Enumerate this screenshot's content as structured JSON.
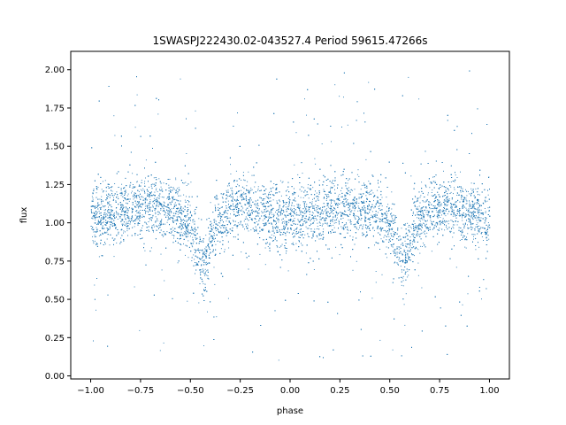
{
  "chart_data": {
    "type": "scatter",
    "title": "1SWASPJ222430.02-043527.4 Period 59615.47266s",
    "xlabel": "phase",
    "ylabel": "flux",
    "xlim": [
      -1.1,
      1.1
    ],
    "ylim": [
      -0.02,
      2.12
    ],
    "xticks": [
      -1.0,
      -0.75,
      -0.5,
      -0.25,
      0.0,
      0.25,
      0.5,
      0.75,
      1.0
    ],
    "xtick_labels": [
      "−1.00",
      "−0.75",
      "−0.50",
      "−0.25",
      "0.00",
      "0.25",
      "0.50",
      "0.75",
      "1.00"
    ],
    "yticks": [
      0.0,
      0.25,
      0.5,
      0.75,
      1.0,
      1.25,
      1.5,
      1.75,
      2.0
    ],
    "ytick_labels": [
      "0.00",
      "0.25",
      "0.50",
      "0.75",
      "1.00",
      "1.25",
      "1.50",
      "1.75",
      "2.00"
    ],
    "grid": false,
    "point_color": "#1f77b4",
    "series": [
      {
        "phase_range": [
          -1.0,
          1.0
        ],
        "curve": {
          "phase": [
            -1.0,
            -0.9,
            -0.8,
            -0.7,
            -0.6,
            -0.5,
            -0.47,
            -0.44,
            -0.41,
            -0.38,
            -0.3,
            -0.2,
            -0.1,
            0.0,
            0.1,
            0.2,
            0.3,
            0.4,
            0.5,
            0.53,
            0.56,
            0.59,
            0.62,
            0.7,
            0.8,
            0.9,
            1.0
          ],
          "flux": [
            1.02,
            1.06,
            1.1,
            1.12,
            1.1,
            0.98,
            0.85,
            0.72,
            0.82,
            0.97,
            1.1,
            1.1,
            1.06,
            1.0,
            1.06,
            1.1,
            1.12,
            1.1,
            0.98,
            0.85,
            0.72,
            0.82,
            0.97,
            1.1,
            1.1,
            1.06,
            1.02
          ]
        },
        "flux_scatter": 0.1
      }
    ]
  }
}
